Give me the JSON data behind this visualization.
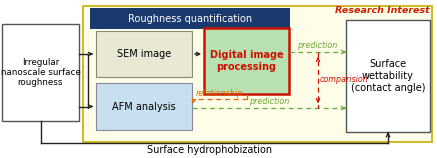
{
  "fig_width": 4.37,
  "fig_height": 1.58,
  "dpi": 100,
  "bg_color": "#ffffff",
  "title_text": "Research Interest",
  "title_color": "#cc2200",
  "subtitle_text": "Surface hydrophobization",
  "roughness_title": "Roughness quantification",
  "roughness_title_bg": "#1a3a6e",
  "roughness_title_color": "#ffffff",
  "yellow_facecolor": "#fdfde8",
  "yellow_edgecolor": "#c8b414",
  "sem_label": "SEM image",
  "sem_bg": "#e8e8d4",
  "sem_edge": "#888877",
  "afm_label": "AFM analysis",
  "afm_bg": "#c8dff0",
  "afm_edge": "#888899",
  "dip_label": "Digital image\nprocessing",
  "dip_bg": "#b8e0b0",
  "dip_border": "#cc1100",
  "dip_text_color": "#cc1100",
  "irregular_label": "Irregular\nnanoscale surface\nroughness",
  "surface_label": "Surface\nwettability\n(contact angle)",
  "prediction_color": "#6aaa38",
  "relationship_color": "#dd6600",
  "comparision_color": "#cc1100",
  "arrow_green": "#6aaa38",
  "arrow_orange": "#dd6600",
  "arrow_red": "#cc1100",
  "arrow_black": "#222222"
}
